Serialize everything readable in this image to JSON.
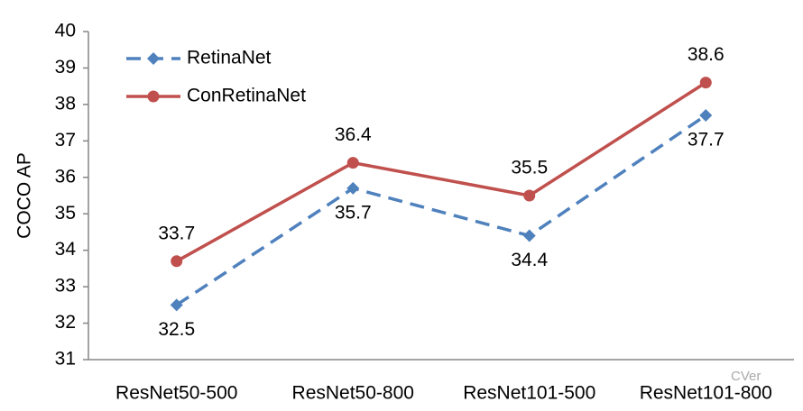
{
  "chart_data": {
    "type": "line",
    "y_label": "COCO AP",
    "categories": [
      "ResNet50-500",
      "ResNet50-800",
      "ResNet101-500",
      "ResNet101-800"
    ],
    "series": [
      {
        "name": "RetinaNet",
        "color": "#4f81bd",
        "dashed": true,
        "marker": "diamond",
        "values": [
          32.5,
          35.7,
          34.4,
          37.7
        ]
      },
      {
        "name": "ConRetinaNet",
        "color": "#c0504d",
        "dashed": false,
        "marker": "circle",
        "values": [
          33.7,
          36.4,
          35.5,
          38.6
        ]
      }
    ],
    "ylim": [
      31,
      40
    ],
    "yticks": [
      31,
      32,
      33,
      34,
      35,
      36,
      37,
      38,
      39,
      40
    ],
    "grid": false,
    "legend": "top-left",
    "watermark": "CVer"
  }
}
